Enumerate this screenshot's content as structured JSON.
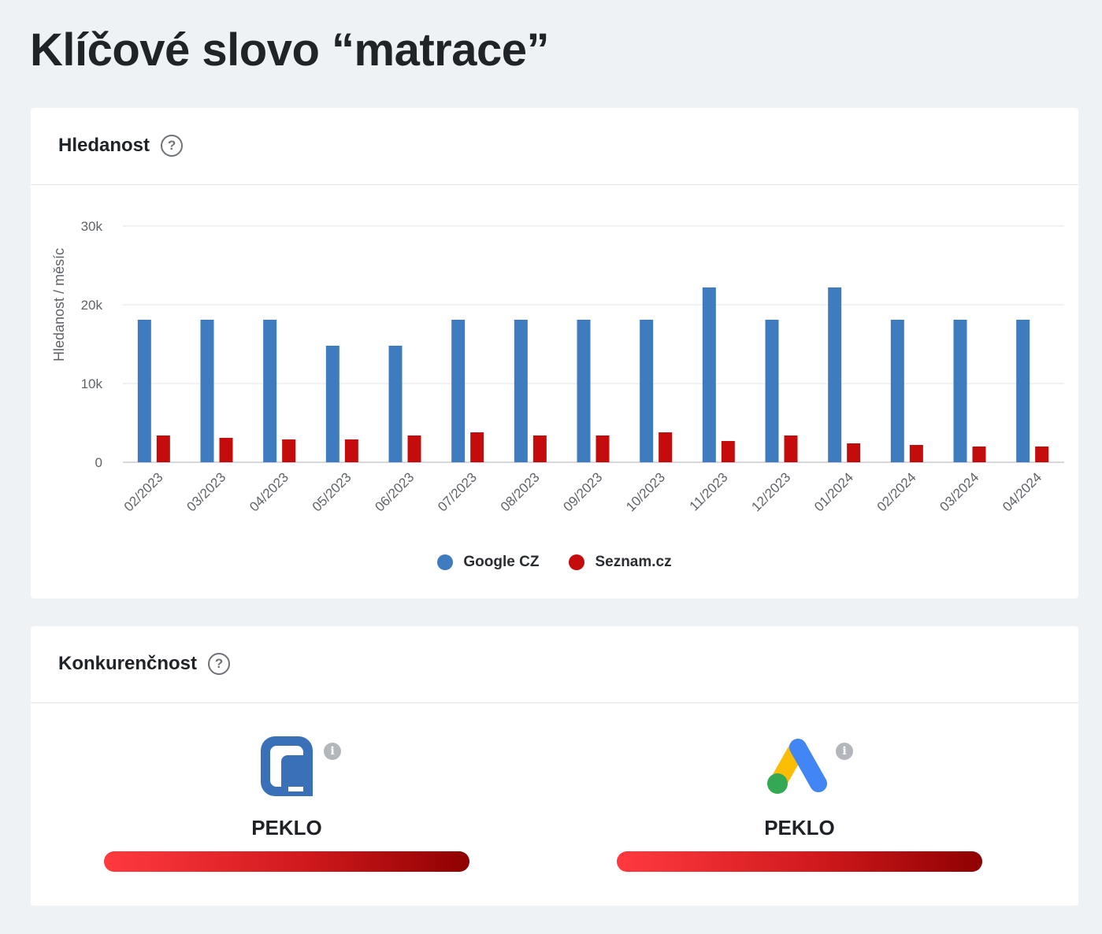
{
  "page": {
    "title": "Klíčové slovo “matrace”"
  },
  "search_card": {
    "title": "Hledanost",
    "help_icon": "question-circle-icon"
  },
  "competition_card": {
    "title": "Konkurenčnost",
    "help_icon": "question-circle-icon",
    "items": [
      {
        "source": "Sklik",
        "logo": "sklik-logo-icon",
        "level": "PEKLO",
        "level_fraction": 1.0
      },
      {
        "source": "Google Ads",
        "logo": "google-ads-logo-icon",
        "level": "PEKLO",
        "level_fraction": 1.0
      }
    ],
    "bar_colors": [
      "#ff3a3f",
      "#d0191c",
      "#8f0002"
    ]
  },
  "chart_data": {
    "type": "bar",
    "title": "",
    "xlabel": "",
    "ylabel": "Hledanost / měsíc",
    "ylim": [
      0,
      30000
    ],
    "yticks": [
      0,
      10000,
      20000,
      30000
    ],
    "ytick_labels": [
      "0",
      "10k",
      "20k",
      "30k"
    ],
    "grid": true,
    "legend_position": "bottom",
    "categories": [
      "02/2023",
      "03/2023",
      "04/2023",
      "05/2023",
      "06/2023",
      "07/2023",
      "08/2023",
      "09/2023",
      "10/2023",
      "11/2023",
      "12/2023",
      "01/2024",
      "02/2024",
      "03/2024",
      "04/2024"
    ],
    "series": [
      {
        "name": "Google CZ",
        "color": "#3e7cbf",
        "values": [
          18100,
          18100,
          18100,
          14800,
          14800,
          18100,
          18100,
          18100,
          18100,
          22200,
          18100,
          22200,
          18100,
          18100,
          18100
        ]
      },
      {
        "name": "Seznam.cz",
        "color": "#c40c0c",
        "values": [
          3400,
          3100,
          2900,
          2900,
          3400,
          3800,
          3400,
          3400,
          3800,
          2700,
          3400,
          2400,
          2200,
          2000,
          2000
        ]
      }
    ]
  }
}
